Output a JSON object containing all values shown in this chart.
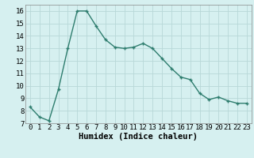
{
  "x": [
    0,
    1,
    2,
    3,
    4,
    5,
    6,
    7,
    8,
    9,
    10,
    11,
    12,
    13,
    14,
    15,
    16,
    17,
    18,
    19,
    20,
    21,
    22,
    23
  ],
  "y": [
    8.3,
    7.5,
    7.2,
    9.7,
    13.0,
    16.0,
    16.0,
    14.8,
    13.7,
    13.1,
    13.0,
    13.1,
    13.4,
    13.0,
    12.2,
    11.4,
    10.7,
    10.5,
    9.4,
    8.9,
    9.1,
    8.8,
    8.6,
    8.6
  ],
  "xlim": [
    -0.5,
    23.5
  ],
  "ylim": [
    7.0,
    16.5
  ],
  "yticks": [
    7,
    8,
    9,
    10,
    11,
    12,
    13,
    14,
    15,
    16
  ],
  "xticks": [
    0,
    1,
    2,
    3,
    4,
    5,
    6,
    7,
    8,
    9,
    10,
    11,
    12,
    13,
    14,
    15,
    16,
    17,
    18,
    19,
    20,
    21,
    22,
    23
  ],
  "xlabel": "Humidex (Indice chaleur)",
  "line_color": "#2e7d6e",
  "marker": "+",
  "background_color": "#d6f0f0",
  "grid_color": "#b8d8d8",
  "tick_fontsize": 6.5,
  "xlabel_fontsize": 7.5
}
